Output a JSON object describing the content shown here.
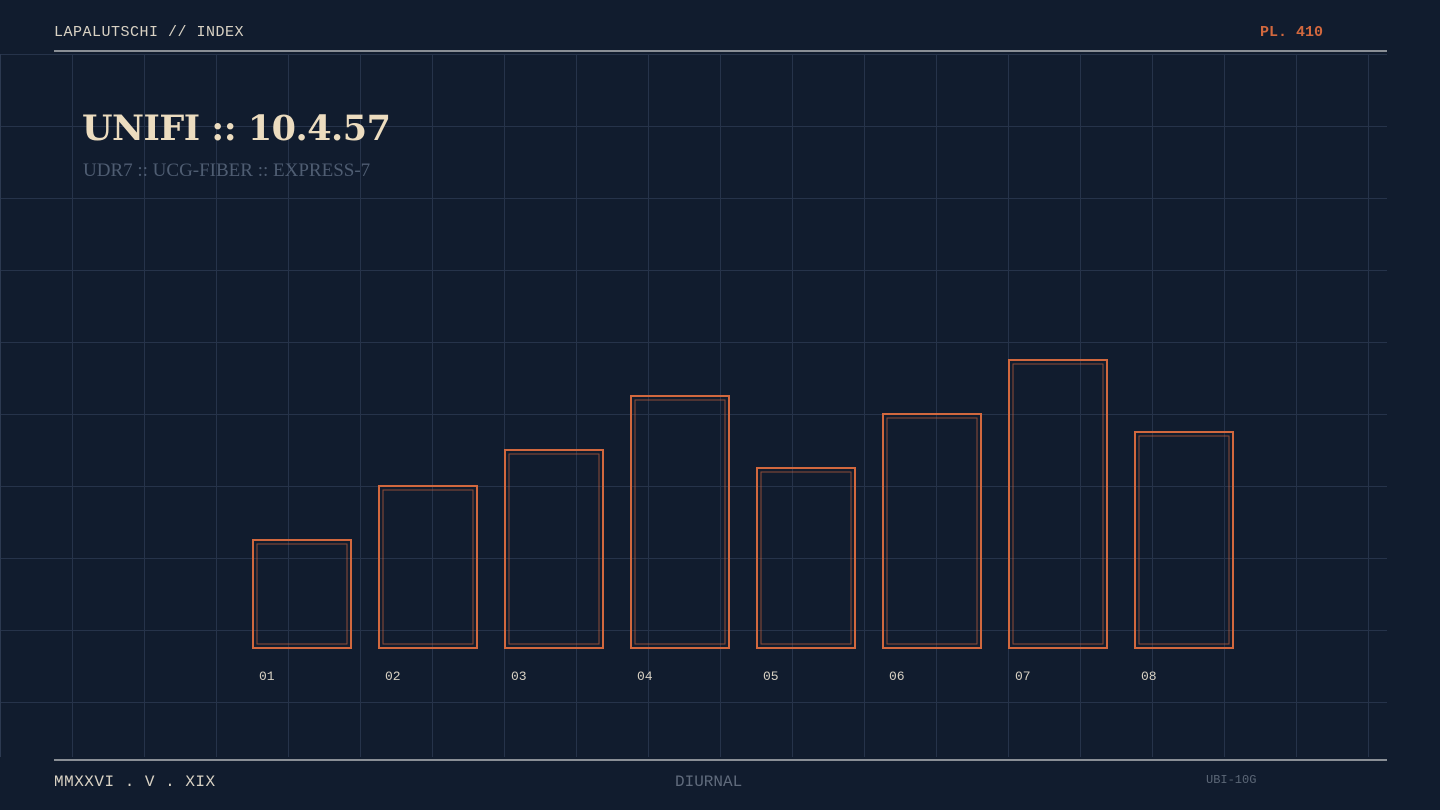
{
  "header": {
    "label": "LAPALUTSCHI // INDEX",
    "plate": "PL. 410"
  },
  "footer": {
    "date": "MMXXVI . V . XIX",
    "mode": "DIURNAL",
    "code": "UBI-10G"
  },
  "colors": {
    "background": "#111c2e",
    "accent": "#d2683e",
    "text": "#ecdcbf"
  },
  "chart_data": {
    "type": "bar",
    "title": "UNIFI :: 10.4.57",
    "subtitle": "UDR7 :: UCG-FIBER :: EXPRESS-7",
    "categories": [
      "01",
      "02",
      "03",
      "04",
      "05",
      "06",
      "07",
      "08"
    ],
    "values": [
      3,
      4.5,
      5.5,
      7,
      5,
      6.5,
      8,
      6
    ],
    "ylim": [
      0,
      10
    ],
    "grid": true,
    "xlabel": "",
    "ylabel": ""
  }
}
